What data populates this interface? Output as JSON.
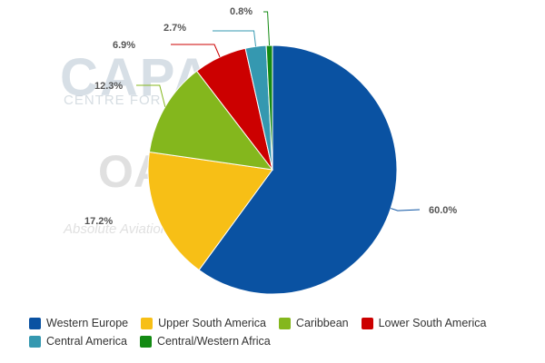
{
  "watermark": {
    "line1": "CAPA",
    "line2": "CENTRE FOR",
    "line3": "OAG",
    "line4": "Absolute Aviation"
  },
  "chart_data": {
    "type": "pie",
    "title": "",
    "legend_position": "bottom-left",
    "slices": [
      {
        "name": "Western Europe",
        "value": 60.0,
        "label": "60.0%",
        "color": "#0a52a2"
      },
      {
        "name": "Upper South America",
        "value": 17.2,
        "label": "17.2%",
        "color": "#f7bf16"
      },
      {
        "name": "Caribbean",
        "value": 12.3,
        "label": "12.3%",
        "color": "#84b71d"
      },
      {
        "name": "Lower South America",
        "value": 6.9,
        "label": "6.9%",
        "color": "#cc0000"
      },
      {
        "name": "Central America",
        "value": 2.7,
        "label": "2.7%",
        "color": "#3598b0"
      },
      {
        "name": "Central/Western Africa",
        "value": 0.8,
        "label": "0.8%",
        "color": "#138a13"
      }
    ]
  }
}
